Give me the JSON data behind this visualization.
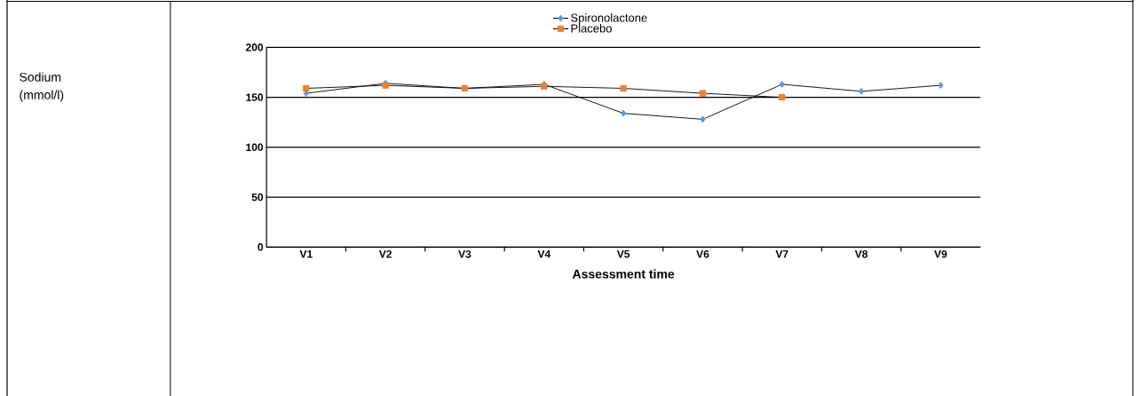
{
  "chart_data": {
    "type": "line",
    "annotations": [
      "Sodium (mmol/l)"
    ],
    "xlabel": "Assessment time",
    "categories": [
      "V1",
      "V2",
      "V3",
      "V4",
      "V5",
      "V6",
      "V7",
      "V8",
      "V9"
    ],
    "series": [
      {
        "name": "Spironolactone",
        "color": "#5b9bd5",
        "marker": "diamond",
        "values": [
          154,
          164,
          159,
          163,
          134,
          128,
          163,
          156,
          162
        ]
      },
      {
        "name": "Placebo",
        "color": "#f07f2e",
        "marker": "square",
        "values": [
          159,
          162,
          159,
          161,
          159,
          154,
          150,
          null,
          null
        ]
      }
    ],
    "ylim": [
      0,
      200
    ],
    "yticks": [
      0,
      50,
      100,
      150,
      200
    ],
    "grid": "y",
    "legend": "top",
    "line_style": "solid"
  }
}
